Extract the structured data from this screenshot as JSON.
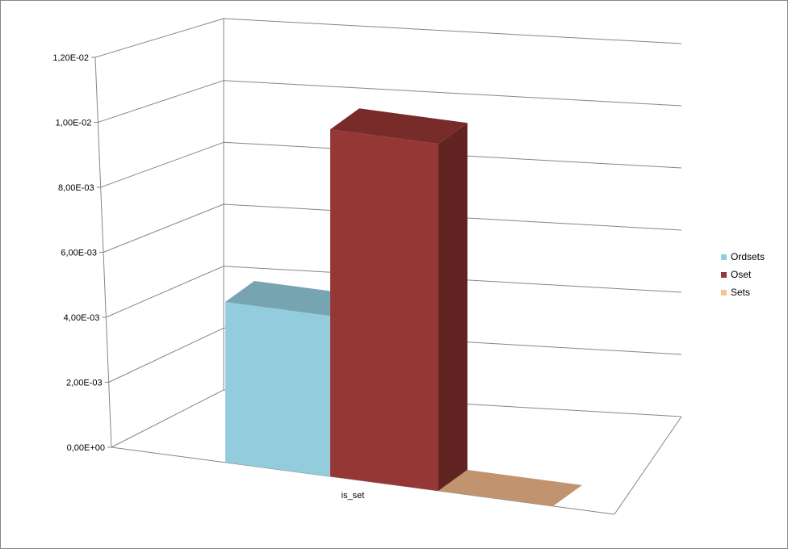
{
  "chart_data": {
    "type": "bar",
    "categories": [
      "is_set"
    ],
    "series": [
      {
        "name": "Ordsets",
        "values": [
          0.00495
        ],
        "color": "#93CDDD"
      },
      {
        "name": "Oset",
        "values": [
          0.0107
        ],
        "color": "#953735"
      },
      {
        "name": "Sets",
        "values": [
          0.0
        ],
        "color": "#FAC090"
      }
    ],
    "yticks": [
      "0,00E+00",
      "2,00E-03",
      "4,00E-03",
      "6,00E-03",
      "8,00E-03",
      "1,00E-02",
      "1,20E-02"
    ],
    "ylim": [
      0,
      0.012
    ],
    "xlabel": "",
    "ylabel": "",
    "legend_position": "right",
    "grid": true,
    "three_d": true
  }
}
